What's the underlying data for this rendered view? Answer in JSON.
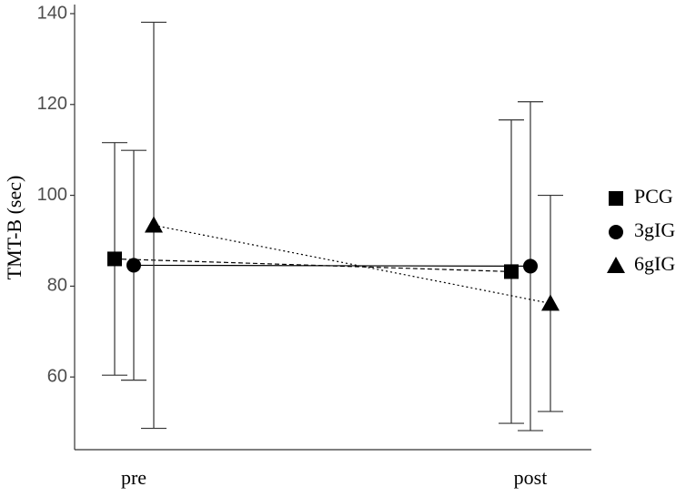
{
  "chart_data": {
    "type": "errorbar-line",
    "y_label": "TMT-B (sec)",
    "categories": [
      "pre",
      "post"
    ],
    "ylim": [
      44,
      142
    ],
    "yticks": [
      60,
      80,
      100,
      120,
      140
    ],
    "series": [
      {
        "name": "PCG",
        "color": "#000000",
        "marker": "square",
        "line_style": "dashed",
        "values": [
          86,
          83.2
        ],
        "errors": [
          25.6,
          33.4
        ]
      },
      {
        "name": "3gIG",
        "color": "#000000",
        "marker": "circle",
        "line_style": "solid",
        "values": [
          84.6,
          84.4
        ],
        "errors": [
          25.3,
          36.2
        ]
      },
      {
        "name": "6gIG",
        "color": "#000000",
        "marker": "triangle",
        "line_style": "dotted",
        "values": [
          93.4,
          76.2
        ],
        "errors": [
          44.7,
          23.8
        ]
      }
    ]
  }
}
